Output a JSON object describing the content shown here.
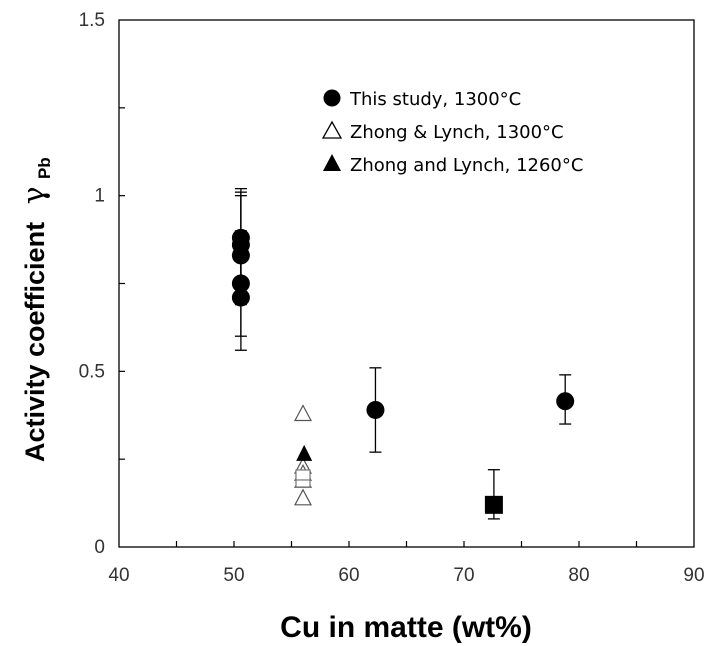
{
  "chart_data": {
    "type": "scatter",
    "xlabel": "Cu in matte (wt%)",
    "ylabel_main": "Activity coefficient",
    "ylabel_symbol": "γ",
    "ylabel_subscript": "Pb",
    "xlim": [
      40,
      90
    ],
    "ylim": [
      0,
      1.5
    ],
    "x_ticks": [
      "40",
      "50",
      "60",
      "70",
      "80",
      "90"
    ],
    "y_ticks": [
      "0",
      "0.5",
      "1",
      "1.5"
    ],
    "grid": false,
    "legend_position": "top-right",
    "legend": [
      {
        "label": "This study, 1300°C",
        "marker": "filled-circle"
      },
      {
        "label": "Zhong & Lynch, 1300°C",
        "marker": "open-triangle"
      },
      {
        "label": "Zhong and Lynch, 1260°C",
        "marker": "filled-triangle"
      }
    ],
    "series": [
      {
        "name": "This study, 1300°C",
        "marker": "filled-circle",
        "points": [
          {
            "x": 50.6,
            "y": 0.88,
            "yerr": [
              0.74,
              1.02
            ]
          },
          {
            "x": 50.6,
            "y": 0.86,
            "yerr": [
              0.72,
              1.01
            ]
          },
          {
            "x": 50.6,
            "y": 0.83,
            "yerr": [
              0.69,
              1.0
            ]
          },
          {
            "x": 50.6,
            "y": 0.75,
            "yerr": [
              0.6,
              0.9
            ]
          },
          {
            "x": 50.6,
            "y": 0.71,
            "yerr": [
              0.56,
              0.86
            ]
          },
          {
            "x": 62.3,
            "y": 0.39,
            "yerr": [
              0.27,
              0.51
            ]
          },
          {
            "x": 78.8,
            "y": 0.415,
            "yerr": [
              0.35,
              0.49
            ]
          }
        ]
      },
      {
        "name": "Zhong & Lynch, 1300°C",
        "marker": "open-triangle",
        "points": [
          {
            "x": 56.0,
            "y": 0.38
          },
          {
            "x": 56.0,
            "y": 0.23
          },
          {
            "x": 56.0,
            "y": 0.21
          },
          {
            "x": 56.0,
            "y": 0.19
          },
          {
            "x": 56.0,
            "y": 0.14
          }
        ]
      },
      {
        "name": "Zhong and Lynch, 1260°C",
        "marker": "filled-triangle",
        "points": [
          {
            "x": 56.1,
            "y": 0.265
          }
        ]
      },
      {
        "name": "",
        "marker": "open-square",
        "points": [
          {
            "x": 56.0,
            "y": 0.185
          },
          {
            "x": 56.0,
            "y": 0.205
          }
        ]
      },
      {
        "name": "",
        "marker": "filled-square",
        "points": [
          {
            "x": 72.6,
            "y": 0.12,
            "yerr": [
              0.08,
              0.22
            ]
          }
        ]
      }
    ]
  }
}
